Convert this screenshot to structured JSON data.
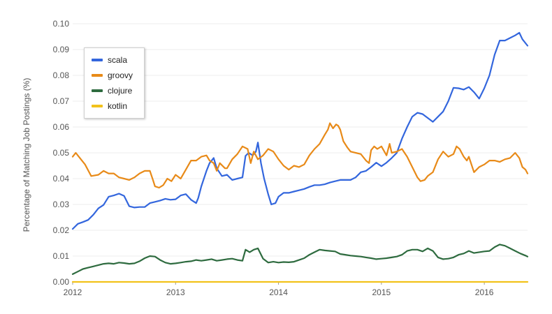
{
  "chart_data": {
    "type": "line",
    "title": "",
    "xlabel": "",
    "ylabel": "Percentage of Matching Job Postings (%)",
    "xlim": [
      2012.0,
      2016.42
    ],
    "ylim": [
      0,
      0.1
    ],
    "x_ticks": [
      "2012",
      "2013",
      "2014",
      "2015",
      "2016"
    ],
    "y_ticks": [
      "0.00",
      "0.01",
      "0.02",
      "0.03",
      "0.04",
      "0.05",
      "0.06",
      "0.07",
      "0.08",
      "0.09",
      "0.10"
    ],
    "grid": true,
    "legend_position": "top-left",
    "series": [
      {
        "name": "scala",
        "color": "#3366dd",
        "points": [
          [
            2012.0,
            0.0205
          ],
          [
            2012.05,
            0.0225
          ],
          [
            2012.1,
            0.0232
          ],
          [
            2012.15,
            0.024
          ],
          [
            2012.2,
            0.026
          ],
          [
            2012.25,
            0.0285
          ],
          [
            2012.3,
            0.0298
          ],
          [
            2012.35,
            0.033
          ],
          [
            2012.4,
            0.0335
          ],
          [
            2012.45,
            0.0342
          ],
          [
            2012.5,
            0.0333
          ],
          [
            2012.55,
            0.0293
          ],
          [
            2012.6,
            0.0288
          ],
          [
            2012.65,
            0.029
          ],
          [
            2012.7,
            0.029
          ],
          [
            2012.75,
            0.0305
          ],
          [
            2012.8,
            0.031
          ],
          [
            2012.85,
            0.0315
          ],
          [
            2012.9,
            0.0322
          ],
          [
            2012.95,
            0.0318
          ],
          [
            2013.0,
            0.032
          ],
          [
            2013.05,
            0.0335
          ],
          [
            2013.1,
            0.034
          ],
          [
            2013.15,
            0.0318
          ],
          [
            2013.2,
            0.0305
          ],
          [
            2013.22,
            0.0325
          ],
          [
            2013.25,
            0.037
          ],
          [
            2013.3,
            0.043
          ],
          [
            2013.33,
            0.046
          ],
          [
            2013.37,
            0.048
          ],
          [
            2013.4,
            0.044
          ],
          [
            2013.45,
            0.041
          ],
          [
            2013.5,
            0.0415
          ],
          [
            2013.55,
            0.0395
          ],
          [
            2013.6,
            0.04
          ],
          [
            2013.65,
            0.0405
          ],
          [
            2013.68,
            0.0488
          ],
          [
            2013.71,
            0.05
          ],
          [
            2013.75,
            0.049
          ],
          [
            2013.78,
            0.0505
          ],
          [
            2013.8,
            0.054
          ],
          [
            2013.83,
            0.046
          ],
          [
            2013.86,
            0.04
          ],
          [
            2013.9,
            0.034
          ],
          [
            2013.93,
            0.03
          ],
          [
            2013.97,
            0.0305
          ],
          [
            2014.0,
            0.033
          ],
          [
            2014.05,
            0.0345
          ],
          [
            2014.1,
            0.0345
          ],
          [
            2014.15,
            0.035
          ],
          [
            2014.2,
            0.0355
          ],
          [
            2014.25,
            0.036
          ],
          [
            2014.3,
            0.0368
          ],
          [
            2014.35,
            0.0375
          ],
          [
            2014.4,
            0.0375
          ],
          [
            2014.45,
            0.0378
          ],
          [
            2014.5,
            0.0385
          ],
          [
            2014.55,
            0.039
          ],
          [
            2014.6,
            0.0395
          ],
          [
            2014.65,
            0.0395
          ],
          [
            2014.7,
            0.0395
          ],
          [
            2014.75,
            0.0405
          ],
          [
            2014.8,
            0.0425
          ],
          [
            2014.85,
            0.043
          ],
          [
            2014.9,
            0.0445
          ],
          [
            2014.95,
            0.0462
          ],
          [
            2015.0,
            0.0448
          ],
          [
            2015.05,
            0.0462
          ],
          [
            2015.1,
            0.048
          ],
          [
            2015.15,
            0.05
          ],
          [
            2015.2,
            0.0555
          ],
          [
            2015.25,
            0.06
          ],
          [
            2015.3,
            0.064
          ],
          [
            2015.35,
            0.0655
          ],
          [
            2015.4,
            0.065
          ],
          [
            2015.45,
            0.0635
          ],
          [
            2015.5,
            0.062
          ],
          [
            2015.55,
            0.064
          ],
          [
            2015.6,
            0.066
          ],
          [
            2015.65,
            0.07
          ],
          [
            2015.7,
            0.0752
          ],
          [
            2015.75,
            0.075
          ],
          [
            2015.8,
            0.0745
          ],
          [
            2015.85,
            0.0755
          ],
          [
            2015.9,
            0.0735
          ],
          [
            2015.95,
            0.071
          ],
          [
            2016.0,
            0.075
          ],
          [
            2016.05,
            0.08
          ],
          [
            2016.1,
            0.088
          ],
          [
            2016.15,
            0.0935
          ],
          [
            2016.2,
            0.0935
          ],
          [
            2016.25,
            0.0945
          ],
          [
            2016.3,
            0.0955
          ],
          [
            2016.34,
            0.0965
          ],
          [
            2016.37,
            0.094
          ],
          [
            2016.42,
            0.0915
          ]
        ]
      },
      {
        "name": "groovy",
        "color": "#e88a18",
        "points": [
          [
            2012.0,
            0.0485
          ],
          [
            2012.03,
            0.05
          ],
          [
            2012.07,
            0.048
          ],
          [
            2012.12,
            0.0455
          ],
          [
            2012.18,
            0.041
          ],
          [
            2012.25,
            0.0415
          ],
          [
            2012.3,
            0.043
          ],
          [
            2012.35,
            0.042
          ],
          [
            2012.4,
            0.042
          ],
          [
            2012.45,
            0.0405
          ],
          [
            2012.5,
            0.04
          ],
          [
            2012.55,
            0.0395
          ],
          [
            2012.6,
            0.0405
          ],
          [
            2012.65,
            0.042
          ],
          [
            2012.7,
            0.043
          ],
          [
            2012.75,
            0.043
          ],
          [
            2012.78,
            0.0395
          ],
          [
            2012.8,
            0.037
          ],
          [
            2012.84,
            0.0365
          ],
          [
            2012.88,
            0.0375
          ],
          [
            2012.92,
            0.04
          ],
          [
            2012.96,
            0.039
          ],
          [
            2013.0,
            0.0415
          ],
          [
            2013.05,
            0.04
          ],
          [
            2013.1,
            0.0435
          ],
          [
            2013.15,
            0.047
          ],
          [
            2013.2,
            0.047
          ],
          [
            2013.25,
            0.0485
          ],
          [
            2013.3,
            0.049
          ],
          [
            2013.33,
            0.047
          ],
          [
            2013.37,
            0.046
          ],
          [
            2013.4,
            0.043
          ],
          [
            2013.43,
            0.046
          ],
          [
            2013.48,
            0.044
          ],
          [
            2013.5,
            0.044
          ],
          [
            2013.55,
            0.0475
          ],
          [
            2013.6,
            0.0495
          ],
          [
            2013.65,
            0.0525
          ],
          [
            2013.7,
            0.0515
          ],
          [
            2013.73,
            0.046
          ],
          [
            2013.76,
            0.0505
          ],
          [
            2013.8,
            0.0475
          ],
          [
            2013.85,
            0.049
          ],
          [
            2013.9,
            0.0515
          ],
          [
            2013.95,
            0.0505
          ],
          [
            2014.0,
            0.0475
          ],
          [
            2014.05,
            0.045
          ],
          [
            2014.1,
            0.0435
          ],
          [
            2014.15,
            0.045
          ],
          [
            2014.2,
            0.0445
          ],
          [
            2014.25,
            0.0455
          ],
          [
            2014.3,
            0.049
          ],
          [
            2014.35,
            0.0515
          ],
          [
            2014.4,
            0.0535
          ],
          [
            2014.45,
            0.057
          ],
          [
            2014.48,
            0.059
          ],
          [
            2014.5,
            0.0615
          ],
          [
            2014.53,
            0.0595
          ],
          [
            2014.56,
            0.061
          ],
          [
            2014.58,
            0.0605
          ],
          [
            2014.6,
            0.059
          ],
          [
            2014.63,
            0.0545
          ],
          [
            2014.67,
            0.052
          ],
          [
            2014.7,
            0.0505
          ],
          [
            2014.75,
            0.05
          ],
          [
            2014.8,
            0.0495
          ],
          [
            2014.85,
            0.047
          ],
          [
            2014.88,
            0.046
          ],
          [
            2014.9,
            0.051
          ],
          [
            2014.93,
            0.0525
          ],
          [
            2014.96,
            0.0515
          ],
          [
            2015.0,
            0.0525
          ],
          [
            2015.05,
            0.049
          ],
          [
            2015.08,
            0.0535
          ],
          [
            2015.1,
            0.05
          ],
          [
            2015.15,
            0.0505
          ],
          [
            2015.2,
            0.0515
          ],
          [
            2015.25,
            0.0485
          ],
          [
            2015.3,
            0.0445
          ],
          [
            2015.35,
            0.0405
          ],
          [
            2015.38,
            0.039
          ],
          [
            2015.42,
            0.0395
          ],
          [
            2015.45,
            0.041
          ],
          [
            2015.5,
            0.0425
          ],
          [
            2015.55,
            0.0475
          ],
          [
            2015.6,
            0.0505
          ],
          [
            2015.65,
            0.0485
          ],
          [
            2015.7,
            0.0495
          ],
          [
            2015.73,
            0.0525
          ],
          [
            2015.76,
            0.0515
          ],
          [
            2015.8,
            0.0485
          ],
          [
            2015.83,
            0.047
          ],
          [
            2015.85,
            0.0485
          ],
          [
            2015.9,
            0.0425
          ],
          [
            2015.95,
            0.0445
          ],
          [
            2016.0,
            0.0455
          ],
          [
            2016.05,
            0.047
          ],
          [
            2016.1,
            0.047
          ],
          [
            2016.15,
            0.0465
          ],
          [
            2016.2,
            0.0475
          ],
          [
            2016.25,
            0.048
          ],
          [
            2016.3,
            0.05
          ],
          [
            2016.34,
            0.048
          ],
          [
            2016.37,
            0.0445
          ],
          [
            2016.4,
            0.0435
          ],
          [
            2016.42,
            0.042
          ]
        ]
      },
      {
        "name": "clojure",
        "color": "#2e6b3f",
        "points": [
          [
            2012.0,
            0.003
          ],
          [
            2012.05,
            0.004
          ],
          [
            2012.1,
            0.005
          ],
          [
            2012.15,
            0.0055
          ],
          [
            2012.2,
            0.006
          ],
          [
            2012.25,
            0.0065
          ],
          [
            2012.3,
            0.007
          ],
          [
            2012.35,
            0.0072
          ],
          [
            2012.4,
            0.007
          ],
          [
            2012.45,
            0.0075
          ],
          [
            2012.5,
            0.0073
          ],
          [
            2012.55,
            0.007
          ],
          [
            2012.6,
            0.0072
          ],
          [
            2012.65,
            0.008
          ],
          [
            2012.7,
            0.0092
          ],
          [
            2012.75,
            0.01
          ],
          [
            2012.8,
            0.0098
          ],
          [
            2012.85,
            0.0085
          ],
          [
            2012.9,
            0.0075
          ],
          [
            2012.95,
            0.007
          ],
          [
            2013.0,
            0.0072
          ],
          [
            2013.05,
            0.0075
          ],
          [
            2013.1,
            0.0078
          ],
          [
            2013.15,
            0.008
          ],
          [
            2013.2,
            0.0085
          ],
          [
            2013.25,
            0.0082
          ],
          [
            2013.3,
            0.0085
          ],
          [
            2013.35,
            0.0088
          ],
          [
            2013.4,
            0.0082
          ],
          [
            2013.45,
            0.0085
          ],
          [
            2013.5,
            0.0088
          ],
          [
            2013.55,
            0.009
          ],
          [
            2013.6,
            0.0085
          ],
          [
            2013.65,
            0.0082
          ],
          [
            2013.68,
            0.0125
          ],
          [
            2013.72,
            0.0115
          ],
          [
            2013.76,
            0.0125
          ],
          [
            2013.8,
            0.013
          ],
          [
            2013.85,
            0.009
          ],
          [
            2013.9,
            0.0075
          ],
          [
            2013.95,
            0.0078
          ],
          [
            2014.0,
            0.0075
          ],
          [
            2014.05,
            0.0077
          ],
          [
            2014.1,
            0.0076
          ],
          [
            2014.15,
            0.0078
          ],
          [
            2014.2,
            0.0085
          ],
          [
            2014.25,
            0.0092
          ],
          [
            2014.3,
            0.0105
          ],
          [
            2014.35,
            0.0115
          ],
          [
            2014.4,
            0.0125
          ],
          [
            2014.45,
            0.0122
          ],
          [
            2014.5,
            0.012
          ],
          [
            2014.55,
            0.0118
          ],
          [
            2014.6,
            0.0108
          ],
          [
            2014.65,
            0.0105
          ],
          [
            2014.7,
            0.0102
          ],
          [
            2014.75,
            0.01
          ],
          [
            2014.8,
            0.0098
          ],
          [
            2014.85,
            0.0095
          ],
          [
            2014.9,
            0.0092
          ],
          [
            2014.95,
            0.0088
          ],
          [
            2015.0,
            0.009
          ],
          [
            2015.05,
            0.0092
          ],
          [
            2015.1,
            0.0095
          ],
          [
            2015.15,
            0.0098
          ],
          [
            2015.2,
            0.0105
          ],
          [
            2015.25,
            0.012
          ],
          [
            2015.3,
            0.0125
          ],
          [
            2015.35,
            0.0125
          ],
          [
            2015.4,
            0.0118
          ],
          [
            2015.45,
            0.013
          ],
          [
            2015.5,
            0.012
          ],
          [
            2015.55,
            0.0095
          ],
          [
            2015.6,
            0.0088
          ],
          [
            2015.65,
            0.009
          ],
          [
            2015.7,
            0.0095
          ],
          [
            2015.75,
            0.0105
          ],
          [
            2015.8,
            0.011
          ],
          [
            2015.85,
            0.012
          ],
          [
            2015.9,
            0.0112
          ],
          [
            2015.95,
            0.0115
          ],
          [
            2016.0,
            0.0118
          ],
          [
            2016.05,
            0.012
          ],
          [
            2016.1,
            0.0135
          ],
          [
            2016.15,
            0.0145
          ],
          [
            2016.2,
            0.014
          ],
          [
            2016.25,
            0.013
          ],
          [
            2016.3,
            0.012
          ],
          [
            2016.35,
            0.011
          ],
          [
            2016.4,
            0.0102
          ],
          [
            2016.42,
            0.0098
          ]
        ]
      },
      {
        "name": "kotlin",
        "color": "#f2c21b",
        "points": [
          [
            2012.0,
            0.0
          ],
          [
            2016.42,
            0.0
          ]
        ]
      }
    ]
  }
}
